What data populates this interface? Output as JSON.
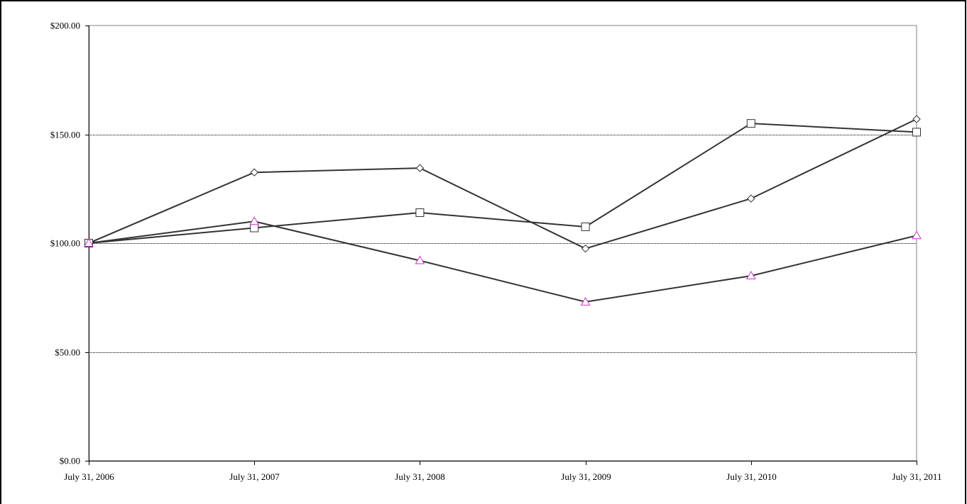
{
  "chart_data": {
    "type": "line",
    "categories": [
      "July 31, 2006",
      "July 31, 2007",
      "July 31, 2008",
      "July 31, 2009",
      "July 31, 2010",
      "July 31, 2011"
    ],
    "y_tick_labels": [
      "$0.00",
      "$50.00",
      "$100.00",
      "$150.00",
      "$200.00"
    ],
    "y_ticks": [
      0,
      50,
      100,
      150,
      200
    ],
    "ylim": [
      0,
      200
    ],
    "grid": true,
    "series": [
      {
        "marker": "diamond",
        "color": "#333333",
        "values": [
          100,
          132.5,
          134.5,
          97.5,
          120.5,
          157
        ]
      },
      {
        "marker": "square",
        "color": "#333333",
        "values": [
          100,
          107,
          114,
          107.5,
          155,
          151
        ]
      },
      {
        "marker": "triangle",
        "color": "#333333",
        "marker_color": "#cc33cc",
        "values": [
          100,
          110,
          92,
          73,
          85,
          103.5
        ]
      }
    ]
  }
}
